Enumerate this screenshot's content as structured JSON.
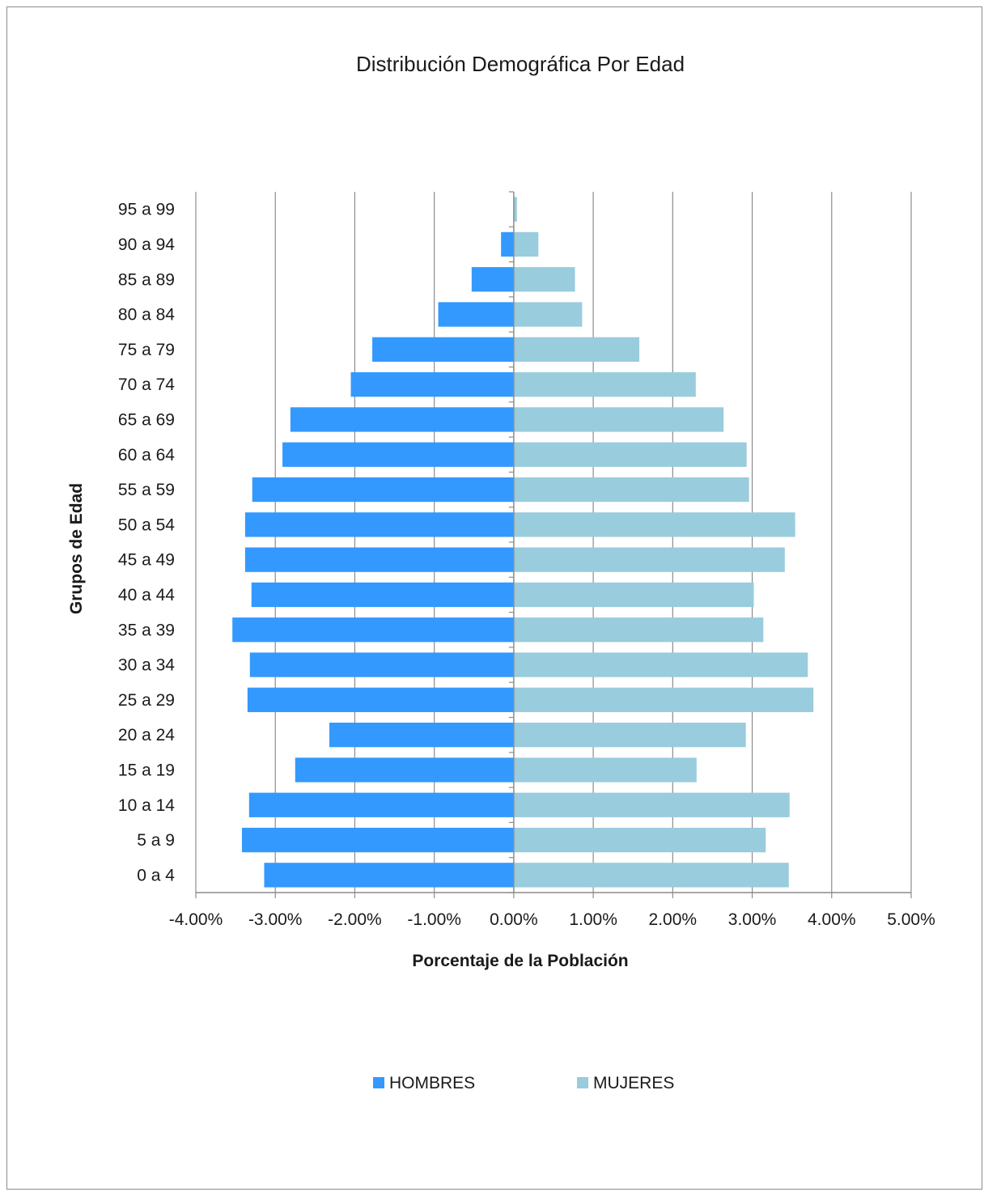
{
  "chart_data": {
    "type": "bar",
    "orientation": "horizontal",
    "title": "Distribución Demográfica Por Edad",
    "xlabel": "Porcentaje de la Población",
    "ylabel": "Grupos de Edad",
    "xlim": [
      -4,
      5
    ],
    "xticks": [
      -4,
      -3,
      -2,
      -1,
      0,
      1,
      2,
      3,
      4,
      5
    ],
    "xtick_labels": [
      "-4.00%",
      "-3.00%",
      "-2.00%",
      "-1.00%",
      "0.00%",
      "1.00%",
      "2.00%",
      "3.00%",
      "4.00%",
      "5.00%"
    ],
    "grid": "vertical",
    "legend_position": "bottom",
    "categories": [
      "0 a 4",
      "5 a 9",
      "10 a 14",
      "15 a 19",
      "20 a 24",
      "25 a 29",
      "30 a 34",
      "35 a 39",
      "40 a 44",
      "45 a 49",
      "50 a 54",
      "55 a 59",
      "60 a 64",
      "65 a 69",
      "70 a 74",
      "75 a 79",
      "80 a 84",
      "85 a 89",
      "90 a 94",
      "95 a 99"
    ],
    "series": [
      {
        "name": "HOMBRES",
        "color": "#3399ff",
        "values": [
          -3.14,
          -3.42,
          -3.33,
          -2.75,
          -2.32,
          -3.35,
          -3.32,
          -3.54,
          -3.3,
          -3.38,
          -3.38,
          -3.29,
          -2.91,
          -2.81,
          -2.05,
          -1.78,
          -0.95,
          -0.53,
          -0.16,
          0
        ]
      },
      {
        "name": "MUJERES",
        "color": "#99ccdd",
        "values": [
          3.46,
          3.17,
          3.47,
          2.3,
          2.92,
          3.77,
          3.7,
          3.14,
          3.02,
          3.41,
          3.54,
          2.96,
          2.93,
          2.64,
          2.29,
          1.58,
          0.86,
          0.77,
          0.31,
          0.04
        ]
      }
    ]
  }
}
